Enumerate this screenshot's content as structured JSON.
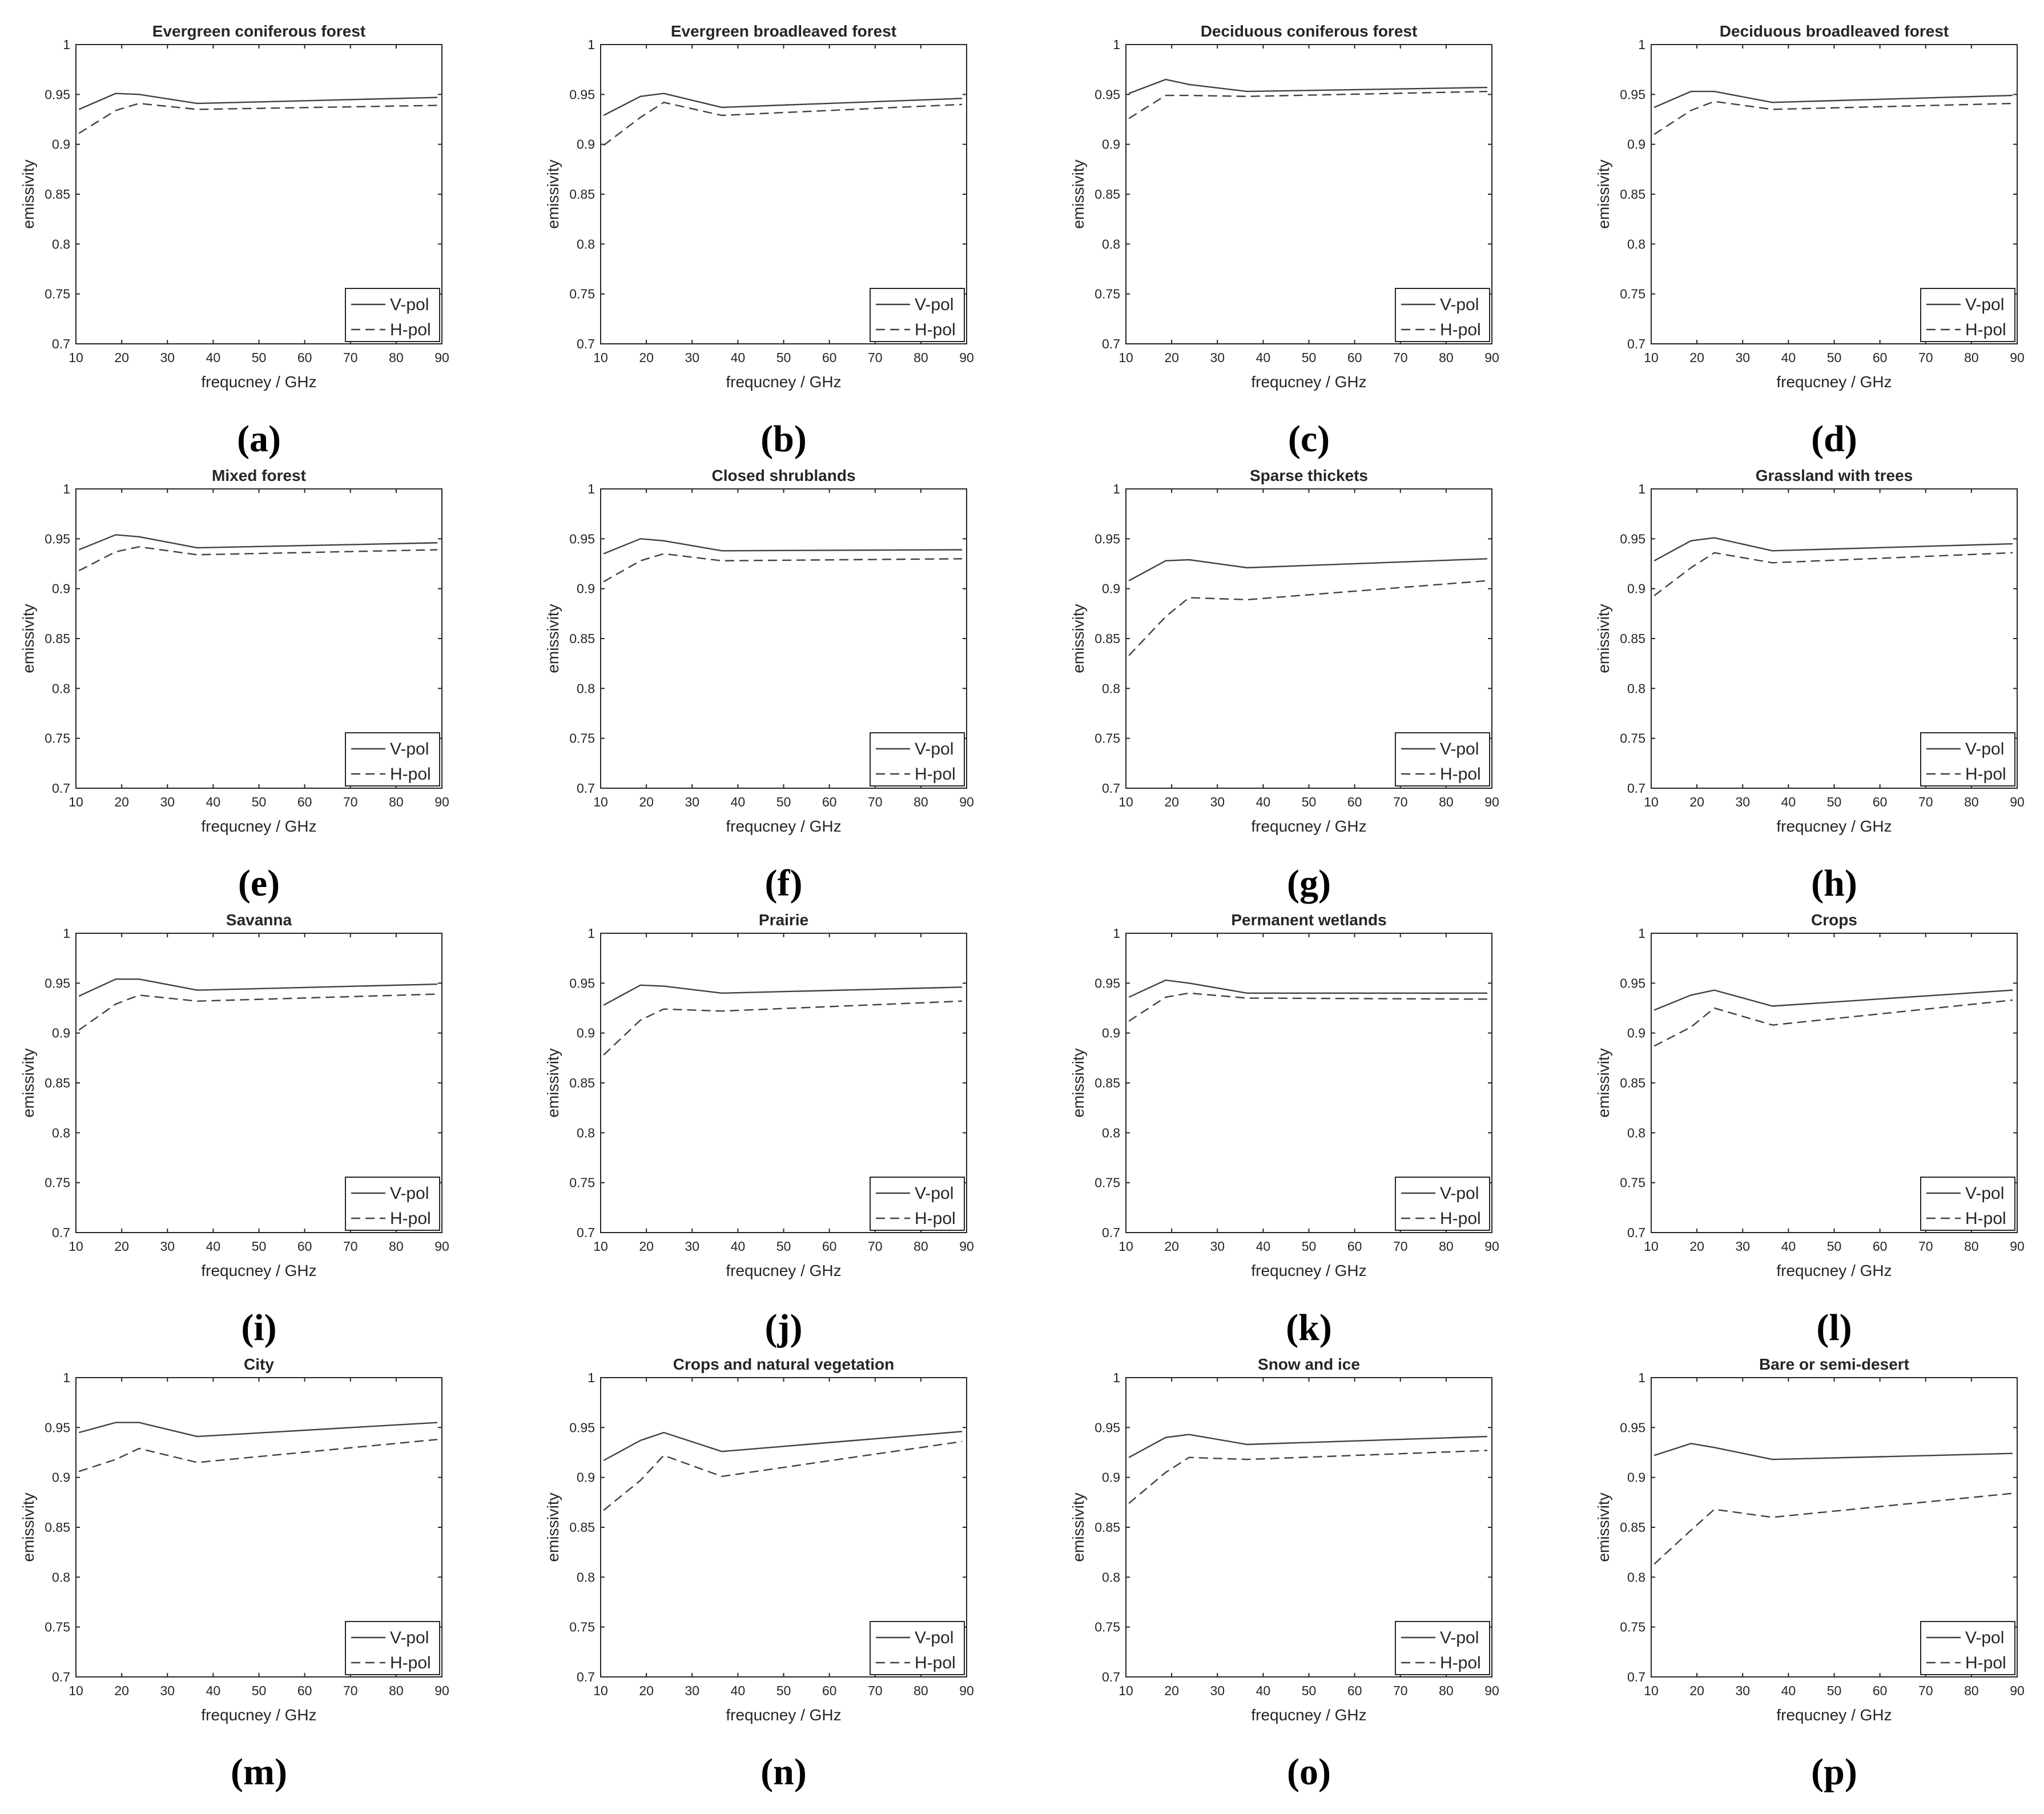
{
  "chart_data": [
    {
      "type": "line",
      "label": "(a)",
      "title": "Evergreen coniferous forest",
      "xlabel": "frequcney / GHz",
      "ylabel": "emissivity",
      "xlim": [
        10,
        90
      ],
      "ylim": [
        0.7,
        1
      ],
      "xticks": [
        10,
        20,
        30,
        40,
        50,
        60,
        70,
        80,
        90
      ],
      "yticks": [
        0.7,
        0.75,
        0.8,
        0.85,
        0.9,
        0.95,
        1
      ],
      "legend": "bottom-right",
      "x": [
        10.65,
        18.7,
        23.8,
        36.5,
        89
      ],
      "series": [
        {
          "name": "V-pol",
          "style": "solid",
          "values": [
            0.935,
            0.951,
            0.95,
            0.941,
            0.947
          ]
        },
        {
          "name": "H-pol",
          "style": "dashed",
          "values": [
            0.911,
            0.934,
            0.941,
            0.935,
            0.939
          ]
        }
      ]
    },
    {
      "type": "line",
      "label": "(b)",
      "title": "Evergreen broadleaved forest",
      "xlabel": "frequcney / GHz",
      "ylabel": "emissivity",
      "xlim": [
        10,
        90
      ],
      "ylim": [
        0.7,
        1
      ],
      "xticks": [
        10,
        20,
        30,
        40,
        50,
        60,
        70,
        80,
        90
      ],
      "yticks": [
        0.7,
        0.75,
        0.8,
        0.85,
        0.9,
        0.95,
        1
      ],
      "legend": "bottom-right",
      "x": [
        10.65,
        18.7,
        23.8,
        36.5,
        89
      ],
      "series": [
        {
          "name": "V-pol",
          "style": "solid",
          "values": [
            0.929,
            0.948,
            0.951,
            0.937,
            0.946
          ]
        },
        {
          "name": "H-pol",
          "style": "dashed",
          "values": [
            0.899,
            0.927,
            0.942,
            0.929,
            0.94
          ]
        }
      ]
    },
    {
      "type": "line",
      "label": "(c)",
      "title": "Deciduous coniferous forest",
      "xlabel": "frequcney / GHz",
      "ylabel": "emissivity",
      "xlim": [
        10,
        90
      ],
      "ylim": [
        0.7,
        1
      ],
      "xticks": [
        10,
        20,
        30,
        40,
        50,
        60,
        70,
        80,
        90
      ],
      "yticks": [
        0.7,
        0.75,
        0.8,
        0.85,
        0.9,
        0.95,
        1
      ],
      "legend": "bottom-right",
      "x": [
        10.65,
        18.7,
        23.8,
        36.5,
        89
      ],
      "series": [
        {
          "name": "V-pol",
          "style": "solid",
          "values": [
            0.951,
            0.965,
            0.96,
            0.953,
            0.957
          ]
        },
        {
          "name": "H-pol",
          "style": "dashed",
          "values": [
            0.926,
            0.949,
            0.949,
            0.948,
            0.953
          ]
        }
      ]
    },
    {
      "type": "line",
      "label": "(d)",
      "title": "Deciduous broadleaved forest",
      "xlabel": "frequcney / GHz",
      "ylabel": "emissivity",
      "xlim": [
        10,
        90
      ],
      "ylim": [
        0.7,
        1
      ],
      "xticks": [
        10,
        20,
        30,
        40,
        50,
        60,
        70,
        80,
        90
      ],
      "yticks": [
        0.7,
        0.75,
        0.8,
        0.85,
        0.9,
        0.95,
        1
      ],
      "legend": "bottom-right",
      "x": [
        10.65,
        18.7,
        23.8,
        36.5,
        89
      ],
      "series": [
        {
          "name": "V-pol",
          "style": "solid",
          "values": [
            0.937,
            0.953,
            0.953,
            0.942,
            0.949
          ]
        },
        {
          "name": "H-pol",
          "style": "dashed",
          "values": [
            0.91,
            0.934,
            0.943,
            0.935,
            0.941
          ]
        }
      ]
    },
    {
      "type": "line",
      "label": "(e)",
      "title": "Mixed forest",
      "xlabel": "frequcney / GHz",
      "ylabel": "emissivity",
      "xlim": [
        10,
        90
      ],
      "ylim": [
        0.7,
        1
      ],
      "xticks": [
        10,
        20,
        30,
        40,
        50,
        60,
        70,
        80,
        90
      ],
      "yticks": [
        0.7,
        0.75,
        0.8,
        0.85,
        0.9,
        0.95,
        1
      ],
      "legend": "bottom-right",
      "x": [
        10.65,
        18.7,
        23.8,
        36.5,
        89
      ],
      "series": [
        {
          "name": "V-pol",
          "style": "solid",
          "values": [
            0.939,
            0.954,
            0.952,
            0.941,
            0.946
          ]
        },
        {
          "name": "H-pol",
          "style": "dashed",
          "values": [
            0.918,
            0.937,
            0.942,
            0.934,
            0.939
          ]
        }
      ]
    },
    {
      "type": "line",
      "label": "(f)",
      "title": "Closed shrublands",
      "xlabel": "frequcney / GHz",
      "ylabel": "emissivity",
      "xlim": [
        10,
        90
      ],
      "ylim": [
        0.7,
        1
      ],
      "xticks": [
        10,
        20,
        30,
        40,
        50,
        60,
        70,
        80,
        90
      ],
      "yticks": [
        0.7,
        0.75,
        0.8,
        0.85,
        0.9,
        0.95,
        1
      ],
      "legend": "bottom-right",
      "x": [
        10.65,
        18.7,
        23.8,
        36.5,
        89
      ],
      "series": [
        {
          "name": "V-pol",
          "style": "solid",
          "values": [
            0.935,
            0.95,
            0.948,
            0.938,
            0.939
          ]
        },
        {
          "name": "H-pol",
          "style": "dashed",
          "values": [
            0.907,
            0.928,
            0.935,
            0.928,
            0.93
          ]
        }
      ]
    },
    {
      "type": "line",
      "label": "(g)",
      "title": "Sparse thickets",
      "xlabel": "frequcney / GHz",
      "ylabel": "emissivity",
      "xlim": [
        10,
        90
      ],
      "ylim": [
        0.7,
        1
      ],
      "xticks": [
        10,
        20,
        30,
        40,
        50,
        60,
        70,
        80,
        90
      ],
      "yticks": [
        0.7,
        0.75,
        0.8,
        0.85,
        0.9,
        0.95,
        1
      ],
      "legend": "bottom-right",
      "x": [
        10.65,
        18.7,
        23.8,
        36.5,
        89
      ],
      "series": [
        {
          "name": "V-pol",
          "style": "solid",
          "values": [
            0.908,
            0.928,
            0.929,
            0.921,
            0.93
          ]
        },
        {
          "name": "H-pol",
          "style": "dashed",
          "values": [
            0.833,
            0.872,
            0.891,
            0.889,
            0.908
          ]
        }
      ]
    },
    {
      "type": "line",
      "label": "(h)",
      "title": "Grassland with trees",
      "xlabel": "frequcney / GHz",
      "ylabel": "emissivity",
      "xlim": [
        10,
        90
      ],
      "ylim": [
        0.7,
        1
      ],
      "xticks": [
        10,
        20,
        30,
        40,
        50,
        60,
        70,
        80,
        90
      ],
      "yticks": [
        0.7,
        0.75,
        0.8,
        0.85,
        0.9,
        0.95,
        1
      ],
      "legend": "bottom-right",
      "x": [
        10.65,
        18.7,
        23.8,
        36.5,
        89
      ],
      "series": [
        {
          "name": "V-pol",
          "style": "solid",
          "values": [
            0.928,
            0.948,
            0.951,
            0.938,
            0.945
          ]
        },
        {
          "name": "H-pol",
          "style": "dashed",
          "values": [
            0.893,
            0.921,
            0.936,
            0.926,
            0.936
          ]
        }
      ]
    },
    {
      "type": "line",
      "label": "(i)",
      "title": "Savanna",
      "xlabel": "frequcney / GHz",
      "ylabel": "emissivity",
      "xlim": [
        10,
        90
      ],
      "ylim": [
        0.7,
        1
      ],
      "xticks": [
        10,
        20,
        30,
        40,
        50,
        60,
        70,
        80,
        90
      ],
      "yticks": [
        0.7,
        0.75,
        0.8,
        0.85,
        0.9,
        0.95,
        1
      ],
      "legend": "bottom-right",
      "x": [
        10.65,
        18.7,
        23.8,
        36.5,
        89
      ],
      "series": [
        {
          "name": "V-pol",
          "style": "solid",
          "values": [
            0.937,
            0.954,
            0.954,
            0.943,
            0.949
          ]
        },
        {
          "name": "H-pol",
          "style": "dashed",
          "values": [
            0.903,
            0.929,
            0.938,
            0.932,
            0.939
          ]
        }
      ]
    },
    {
      "type": "line",
      "label": "(j)",
      "title": "Prairie",
      "xlabel": "frequcney / GHz",
      "ylabel": "emissivity",
      "xlim": [
        10,
        90
      ],
      "ylim": [
        0.7,
        1
      ],
      "xticks": [
        10,
        20,
        30,
        40,
        50,
        60,
        70,
        80,
        90
      ],
      "yticks": [
        0.7,
        0.75,
        0.8,
        0.85,
        0.9,
        0.95,
        1
      ],
      "legend": "bottom-right",
      "x": [
        10.65,
        18.7,
        23.8,
        36.5,
        89
      ],
      "series": [
        {
          "name": "V-pol",
          "style": "solid",
          "values": [
            0.928,
            0.948,
            0.947,
            0.94,
            0.946
          ]
        },
        {
          "name": "H-pol",
          "style": "dashed",
          "values": [
            0.878,
            0.913,
            0.924,
            0.922,
            0.932
          ]
        }
      ]
    },
    {
      "type": "line",
      "label": "(k)",
      "title": "Permanent wetlands",
      "xlabel": "frequcney / GHz",
      "ylabel": "emissivity",
      "xlim": [
        10,
        90
      ],
      "ylim": [
        0.7,
        1
      ],
      "xticks": [
        10,
        20,
        30,
        40,
        50,
        60,
        70,
        80,
        90
      ],
      "yticks": [
        0.7,
        0.75,
        0.8,
        0.85,
        0.9,
        0.95,
        1
      ],
      "legend": "bottom-right",
      "x": [
        10.65,
        18.7,
        23.8,
        36.5,
        89
      ],
      "series": [
        {
          "name": "V-pol",
          "style": "solid",
          "values": [
            0.936,
            0.953,
            0.95,
            0.94,
            0.94
          ]
        },
        {
          "name": "H-pol",
          "style": "dashed",
          "values": [
            0.912,
            0.936,
            0.94,
            0.935,
            0.934
          ]
        }
      ]
    },
    {
      "type": "line",
      "label": "(l)",
      "title": "Crops",
      "xlabel": "frequcney / GHz",
      "ylabel": "emissivity",
      "xlim": [
        10,
        90
      ],
      "ylim": [
        0.7,
        1
      ],
      "xticks": [
        10,
        20,
        30,
        40,
        50,
        60,
        70,
        80,
        90
      ],
      "yticks": [
        0.7,
        0.75,
        0.8,
        0.85,
        0.9,
        0.95,
        1
      ],
      "legend": "bottom-right",
      "x": [
        10.65,
        18.7,
        23.8,
        36.5,
        89
      ],
      "series": [
        {
          "name": "V-pol",
          "style": "solid",
          "values": [
            0.923,
            0.938,
            0.943,
            0.927,
            0.943
          ]
        },
        {
          "name": "H-pol",
          "style": "dashed",
          "values": [
            0.887,
            0.906,
            0.925,
            0.908,
            0.933
          ]
        }
      ]
    },
    {
      "type": "line",
      "label": "(m)",
      "title": "City",
      "xlabel": "frequcney / GHz",
      "ylabel": "emissivity",
      "xlim": [
        10,
        90
      ],
      "ylim": [
        0.7,
        1
      ],
      "xticks": [
        10,
        20,
        30,
        40,
        50,
        60,
        70,
        80,
        90
      ],
      "yticks": [
        0.7,
        0.75,
        0.8,
        0.85,
        0.9,
        0.95,
        1
      ],
      "legend": "bottom-right",
      "x": [
        10.65,
        18.7,
        23.8,
        36.5,
        89
      ],
      "series": [
        {
          "name": "V-pol",
          "style": "solid",
          "values": [
            0.945,
            0.955,
            0.955,
            0.941,
            0.955
          ]
        },
        {
          "name": "H-pol",
          "style": "dashed",
          "values": [
            0.906,
            0.918,
            0.929,
            0.915,
            0.938
          ]
        }
      ]
    },
    {
      "type": "line",
      "label": "(n)",
      "title": "Crops and natural vegetation",
      "xlabel": "frequcney / GHz",
      "ylabel": "emissivity",
      "xlim": [
        10,
        90
      ],
      "ylim": [
        0.7,
        1
      ],
      "xticks": [
        10,
        20,
        30,
        40,
        50,
        60,
        70,
        80,
        90
      ],
      "yticks": [
        0.7,
        0.75,
        0.8,
        0.85,
        0.9,
        0.95,
        1
      ],
      "legend": "bottom-right",
      "x": [
        10.65,
        18.7,
        23.8,
        36.5,
        89
      ],
      "series": [
        {
          "name": "V-pol",
          "style": "solid",
          "values": [
            0.917,
            0.937,
            0.945,
            0.926,
            0.946
          ]
        },
        {
          "name": "H-pol",
          "style": "dashed",
          "values": [
            0.867,
            0.897,
            0.922,
            0.901,
            0.936
          ]
        }
      ]
    },
    {
      "type": "line",
      "label": "(o)",
      "title": "Snow and ice",
      "xlabel": "frequcney / GHz",
      "ylabel": "emissivity",
      "xlim": [
        10,
        90
      ],
      "ylim": [
        0.7,
        1
      ],
      "xticks": [
        10,
        20,
        30,
        40,
        50,
        60,
        70,
        80,
        90
      ],
      "yticks": [
        0.7,
        0.75,
        0.8,
        0.85,
        0.9,
        0.95,
        1
      ],
      "legend": "bottom-right",
      "x": [
        10.65,
        18.7,
        23.8,
        36.5,
        89
      ],
      "series": [
        {
          "name": "V-pol",
          "style": "solid",
          "values": [
            0.92,
            0.94,
            0.943,
            0.933,
            0.941
          ]
        },
        {
          "name": "H-pol",
          "style": "dashed",
          "values": [
            0.874,
            0.905,
            0.92,
            0.918,
            0.927
          ]
        }
      ]
    },
    {
      "type": "line",
      "label": "(p)",
      "title": "Bare or semi-desert",
      "xlabel": "frequcney / GHz",
      "ylabel": "emissivity",
      "xlim": [
        10,
        90
      ],
      "ylim": [
        0.7,
        1
      ],
      "xticks": [
        10,
        20,
        30,
        40,
        50,
        60,
        70,
        80,
        90
      ],
      "yticks": [
        0.7,
        0.75,
        0.8,
        0.85,
        0.9,
        0.95,
        1
      ],
      "legend": "bottom-right",
      "x": [
        10.65,
        18.7,
        23.8,
        36.5,
        89
      ],
      "series": [
        {
          "name": "V-pol",
          "style": "solid",
          "values": [
            0.922,
            0.934,
            0.93,
            0.918,
            0.924
          ]
        },
        {
          "name": "H-pol",
          "style": "dashed",
          "values": [
            0.813,
            0.847,
            0.868,
            0.86,
            0.884
          ]
        }
      ]
    }
  ]
}
